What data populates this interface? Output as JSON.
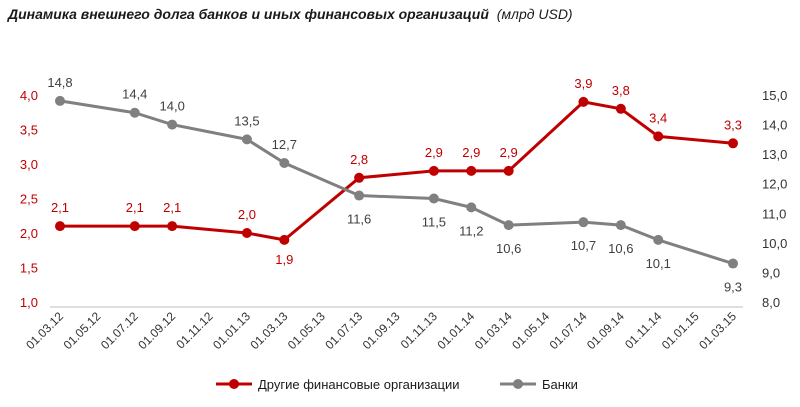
{
  "chart_data": {
    "type": "line",
    "title": "Динамика  внешнего долга банков  и иных финансовых  организаций",
    "unit": "(млрд USD)",
    "categories": [
      "01.03.12",
      "01.05.12",
      "01.07.12",
      "01.09.12",
      "01.11.12",
      "01.01.13",
      "01.03.13",
      "01.05.13",
      "01.07.13",
      "01.09.13",
      "01.11.13",
      "01.01.14",
      "01.03.14",
      "01.05.14",
      "01.07.14",
      "01.09.14",
      "01.11.14",
      "01.01.15",
      "01.03.15"
    ],
    "left_axis": {
      "ylim": [
        1.0,
        4.0
      ],
      "ticks": [
        "1,0",
        "1,5",
        "2,0",
        "2,5",
        "3,0",
        "3,5",
        "4,0"
      ],
      "color": "#c00000"
    },
    "right_axis": {
      "ylim": [
        8.0,
        15.0
      ],
      "ticks": [
        "8,0",
        "9,0",
        "10,0",
        "11,0",
        "12,0",
        "13,0",
        "14,0",
        "15,0"
      ],
      "color": "#333333"
    },
    "grid": false,
    "legend_position": "bottom",
    "series": [
      {
        "name": "Другие финансовые организации",
        "axis": "left",
        "color": "#c00000",
        "x": [
          "01.03.12",
          "01.07.12",
          "01.09.12",
          "01.01.13",
          "01.03.13",
          "01.07.13",
          "01.11.13",
          "01.01.14",
          "01.03.14",
          "01.07.14",
          "01.09.14",
          "01.11.14",
          "01.03.15"
        ],
        "values": [
          2.1,
          2.1,
          2.1,
          2.0,
          1.9,
          2.8,
          2.9,
          2.9,
          2.9,
          3.9,
          3.8,
          3.4,
          3.3
        ],
        "labels": [
          "2,1",
          "2,1",
          "2,1",
          "2,0",
          "1,9",
          "2,8",
          "2,9",
          "2,9",
          "2,9",
          "3,9",
          "3,8",
          "3,4",
          "3,3"
        ]
      },
      {
        "name": "Банки",
        "axis": "right",
        "color": "#808080",
        "x": [
          "01.03.12",
          "01.07.12",
          "01.09.12",
          "01.01.13",
          "01.03.13",
          "01.07.13",
          "01.11.13",
          "01.01.14",
          "01.03.14",
          "01.07.14",
          "01.09.14",
          "01.11.14",
          "01.03.15"
        ],
        "values": [
          14.8,
          14.4,
          14.0,
          13.5,
          12.7,
          11.6,
          11.5,
          11.2,
          10.6,
          10.7,
          10.6,
          10.1,
          9.3
        ],
        "labels": [
          "14,8",
          "14,4",
          "14,0",
          "13,5",
          "12,7",
          "11,6",
          "11,5",
          "11,2",
          "10,6",
          "10,7",
          "10,6",
          "10,1",
          "9,3"
        ]
      }
    ]
  }
}
